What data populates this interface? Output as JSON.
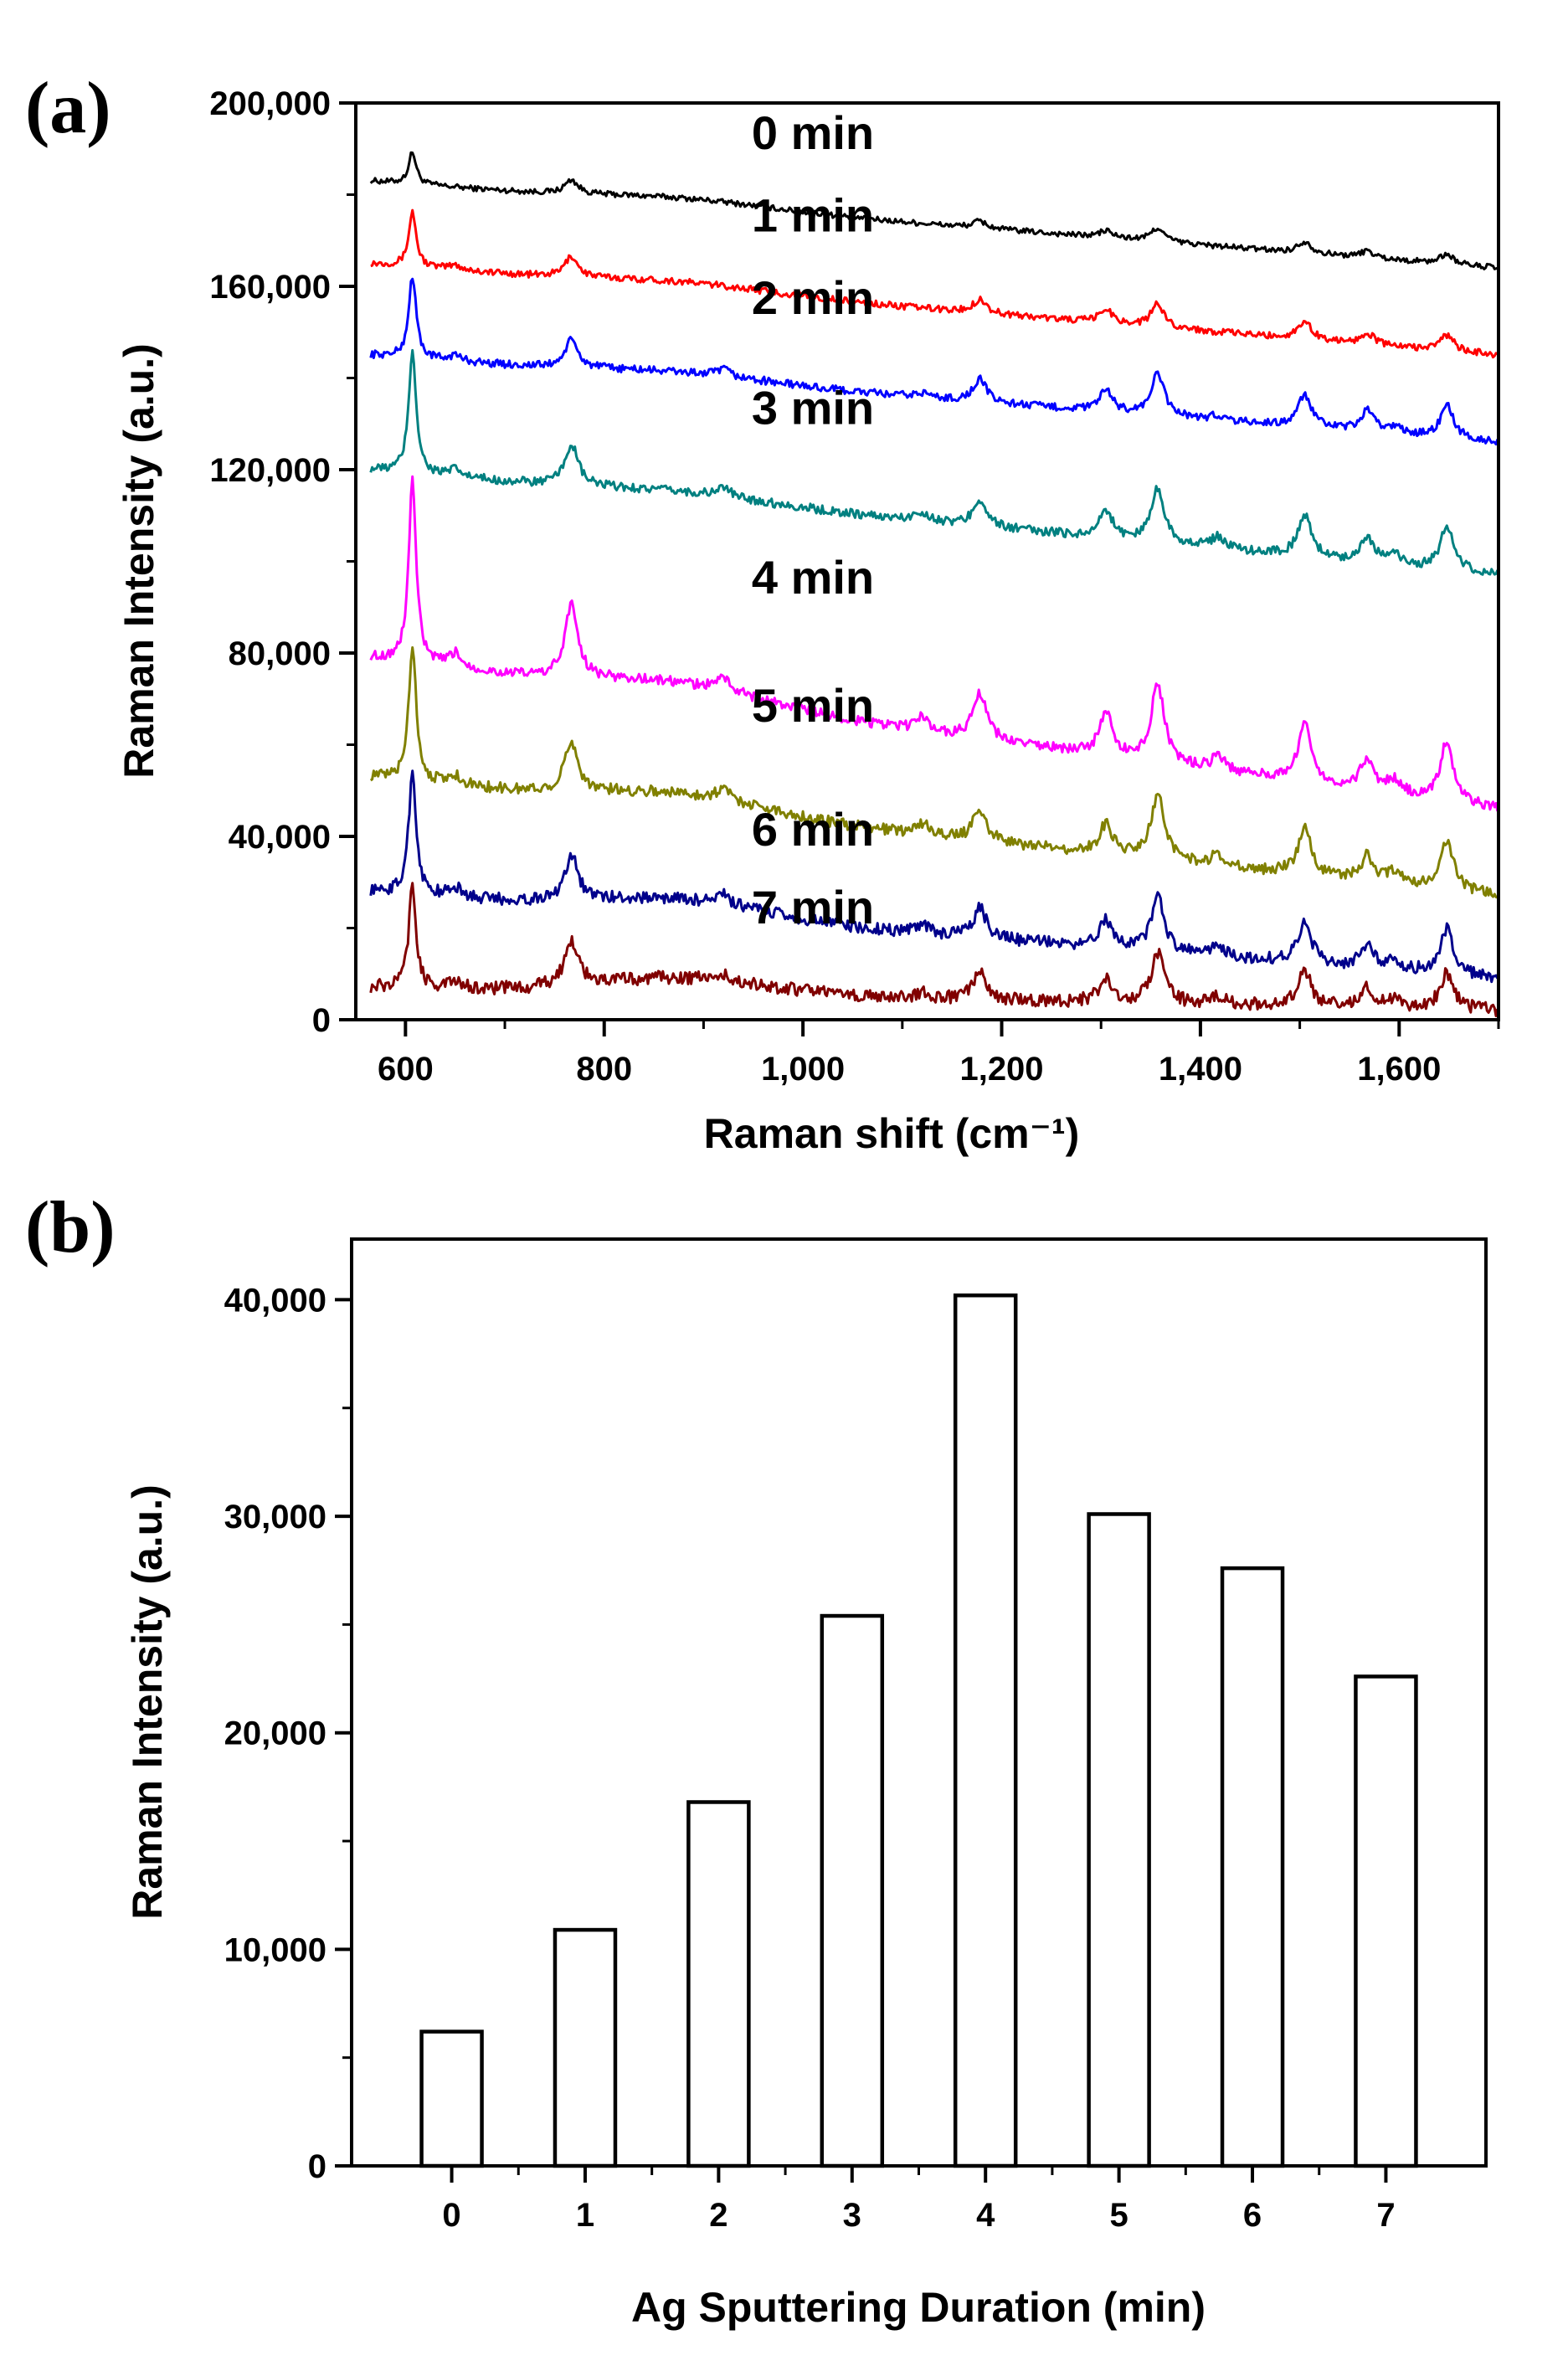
{
  "chart_data": [
    {
      "panel_label": "(a)",
      "type": "line",
      "xlabel": "Raman shift (cm⁻¹)",
      "ylabel": "Raman Intensity (a.u.)",
      "xlim": [
        550,
        1700
      ],
      "ylim": [
        0,
        200000
      ],
      "x_ticks": [
        600,
        800,
        1000,
        1200,
        1400,
        1600
      ],
      "x_tick_labels": [
        "600",
        "800",
        "1,000",
        "1,200",
        "1,400",
        "1,600"
      ],
      "y_ticks": [
        0,
        40000,
        80000,
        120000,
        160000,
        200000
      ],
      "y_tick_labels": [
        "0",
        "40,000",
        "80,000",
        "120,000",
        "160,000",
        "200,000"
      ],
      "peak_positions": [
        607,
        650,
        767,
        920,
        1120,
        1178,
        1305,
        1357,
        1418,
        1505,
        1568,
        1595,
        1648
      ],
      "series": [
        {
          "name": "0 min",
          "label_x": 1010,
          "label_y": 190000,
          "color": "#000000",
          "baseline_start": 183000,
          "baseline_end": 164000,
          "peak_heights": [
            7000,
            0,
            3000,
            0,
            0,
            1500,
            1500,
            3000,
            0,
            2500,
            1500,
            0,
            2200
          ]
        },
        {
          "name": "1 min",
          "label_x": 1010,
          "label_y": 172000,
          "color": "#ff0000",
          "baseline_start": 165000,
          "baseline_end": 145000,
          "peak_heights": [
            12000,
            1000,
            4500,
            0,
            0,
            3000,
            3000,
            5000,
            0,
            4000,
            2500,
            0,
            3500
          ]
        },
        {
          "name": "2 min",
          "label_x": 1010,
          "label_y": 154000,
          "color": "#0000ff",
          "baseline_start": 145000,
          "baseline_end": 126000,
          "peak_heights": [
            18000,
            1200,
            6000,
            1500,
            1000,
            5000,
            4500,
            9000,
            1000,
            7000,
            4500,
            1500,
            7000
          ]
        },
        {
          "name": "3 min",
          "label_x": 1010,
          "label_y": 130000,
          "color": "#008080",
          "baseline_start": 120000,
          "baseline_end": 97000,
          "peak_heights": [
            27000,
            1500,
            9000,
            2000,
            2000,
            6000,
            6000,
            12000,
            2500,
            9000,
            5500,
            2000,
            9500
          ]
        },
        {
          "name": "4 min",
          "label_x": 1010,
          "label_y": 93000,
          "color": "#ff00ff",
          "baseline_start": 79000,
          "baseline_end": 46000,
          "peak_heights": [
            40000,
            3000,
            16000,
            3000,
            3000,
            10000,
            9000,
            17000,
            3000,
            13000,
            7000,
            3000,
            13000
          ]
        },
        {
          "name": "5 min",
          "label_x": 1010,
          "label_y": 65000,
          "color": "#808000",
          "baseline_start": 53000,
          "baseline_end": 27000,
          "peak_heights": [
            30000,
            2000,
            11000,
            2500,
            2500,
            7000,
            6500,
            14000,
            2500,
            10000,
            5500,
            2500,
            11000
          ]
        },
        {
          "name": "6 min",
          "label_x": 1010,
          "label_y": 38000,
          "color": "#00008b",
          "baseline_start": 28000,
          "baseline_end": 9000,
          "peak_heights": [
            27000,
            2000,
            10000,
            2000,
            2000,
            6500,
            6000,
            12000,
            2000,
            9000,
            5000,
            2000,
            10000
          ]
        },
        {
          "name": "7 min",
          "label_x": 1010,
          "label_y": 21000,
          "color": "#800000",
          "baseline_start": 7000,
          "baseline_end": 2000,
          "peak_heights": [
            22000,
            1500,
            10000,
            1000,
            1500,
            6000,
            5500,
            11000,
            1500,
            7500,
            4500,
            1500,
            8000
          ]
        }
      ]
    },
    {
      "panel_label": "(b)",
      "type": "bar",
      "xlabel": "Ag Sputtering Duration (min)",
      "ylabel": "Raman Intensity (a.u.)",
      "ylim": [
        0,
        42800
      ],
      "categories": [
        "0",
        "1",
        "2",
        "3",
        "4",
        "5",
        "6",
        "7"
      ],
      "values": [
        6200,
        10900,
        16800,
        25400,
        40200,
        30100,
        27600,
        22600
      ],
      "y_ticks": [
        0,
        10000,
        20000,
        30000,
        40000
      ],
      "y_tick_labels": [
        "0",
        "10,000",
        "20,000",
        "30,000",
        "40,000"
      ]
    }
  ]
}
